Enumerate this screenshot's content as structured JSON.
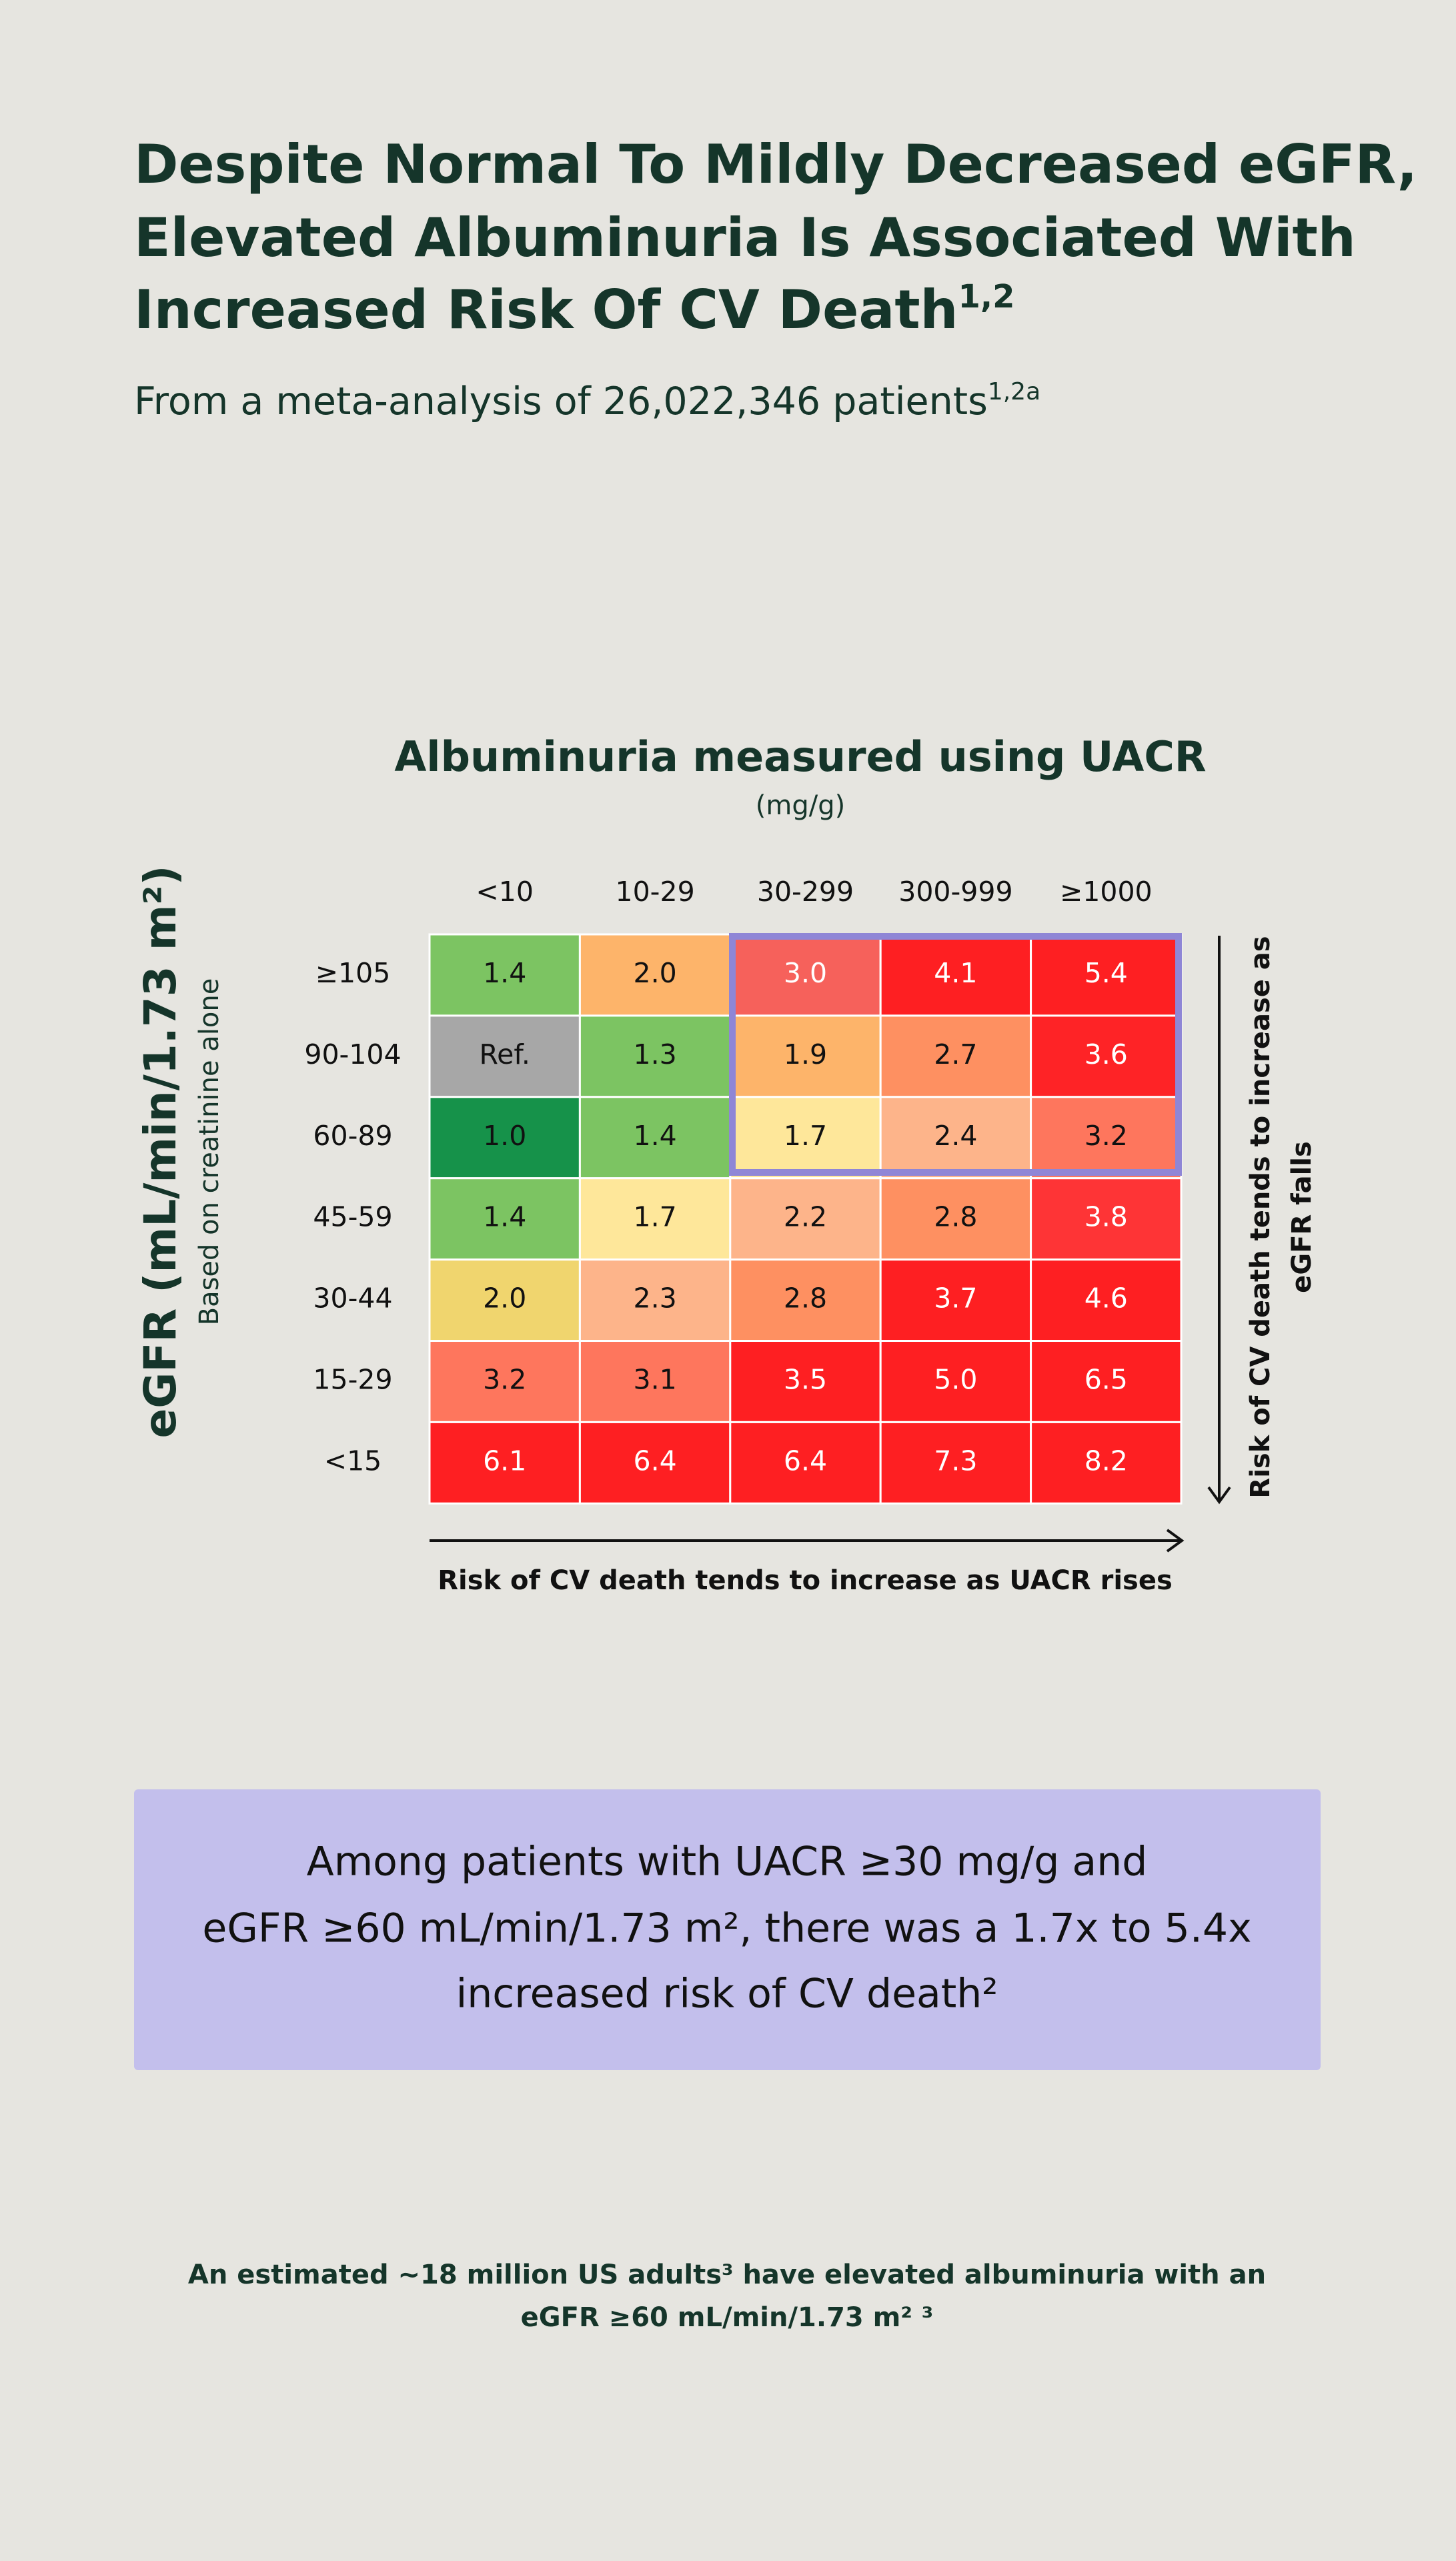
{
  "header": {
    "title_lines": [
      "Despite Normal To Mildly Decreased eGFR,",
      "Elevated Albuminuria Is Associated With",
      "Increased Risk Of CV Death"
    ],
    "title_sup": "1,2",
    "subtitle": "From a meta-analysis of 26,022,346 patients",
    "subtitle_sup": "1,2a"
  },
  "table": {
    "title": "Albuminuria measured using UACR",
    "unit": "(mg/g)",
    "columns": [
      "<10",
      "10-29",
      "30-299",
      "300-999",
      "≥1000"
    ],
    "row_axis_title": "eGFR (mL/min/1.73 m²)",
    "row_axis_subtitle": "Based on creatinine alone",
    "rows": [
      {
        "label": "≥105",
        "cells": [
          {
            "text": "1.4",
            "color": "#7cc462",
            "text_color": "#111111"
          },
          {
            "text": "2.0",
            "color": "#fdb46a",
            "text_color": "#111111"
          },
          {
            "text": "3.0",
            "color": "#f6615b",
            "text_color": "#ffffff"
          },
          {
            "text": "4.1",
            "color": "#fe1f22",
            "text_color": "#ffffff"
          },
          {
            "text": "5.4",
            "color": "#fe1f22",
            "text_color": "#ffffff"
          }
        ]
      },
      {
        "label": "90-104",
        "cells": [
          {
            "text": "Ref.",
            "color": "#a7a7a7",
            "text_color": "#111111"
          },
          {
            "text": "1.3",
            "color": "#7cc462",
            "text_color": "#111111"
          },
          {
            "text": "1.9",
            "color": "#fdb46a",
            "text_color": "#111111"
          },
          {
            "text": "2.7",
            "color": "#fe9061",
            "text_color": "#111111"
          },
          {
            "text": "3.6",
            "color": "#fe2326",
            "text_color": "#ffffff"
          }
        ]
      },
      {
        "label": "60-89",
        "cells": [
          {
            "text": "1.0",
            "color": "#16924a",
            "text_color": "#111111"
          },
          {
            "text": "1.4",
            "color": "#7cc462",
            "text_color": "#111111"
          },
          {
            "text": "1.7",
            "color": "#fee79a",
            "text_color": "#111111"
          },
          {
            "text": "2.4",
            "color": "#fdb48a",
            "text_color": "#111111"
          },
          {
            "text": "3.2",
            "color": "#fe765d",
            "text_color": "#111111"
          }
        ]
      },
      {
        "label": "45-59",
        "cells": [
          {
            "text": "1.4",
            "color": "#7cc462",
            "text_color": "#111111"
          },
          {
            "text": "1.7",
            "color": "#fee79a",
            "text_color": "#111111"
          },
          {
            "text": "2.2",
            "color": "#fdb48a",
            "text_color": "#111111"
          },
          {
            "text": "2.8",
            "color": "#fe9061",
            "text_color": "#111111"
          },
          {
            "text": "3.8",
            "color": "#fe3436",
            "text_color": "#ffffff"
          }
        ]
      },
      {
        "label": "30-44",
        "cells": [
          {
            "text": "2.0",
            "color": "#f0d56e",
            "text_color": "#111111"
          },
          {
            "text": "2.3",
            "color": "#fdb48a",
            "text_color": "#111111"
          },
          {
            "text": "2.8",
            "color": "#fe9061",
            "text_color": "#111111"
          },
          {
            "text": "3.7",
            "color": "#fe1f22",
            "text_color": "#ffffff"
          },
          {
            "text": "4.6",
            "color": "#fe1f22",
            "text_color": "#ffffff"
          }
        ]
      },
      {
        "label": "15-29",
        "cells": [
          {
            "text": "3.2",
            "color": "#fe765d",
            "text_color": "#111111"
          },
          {
            "text": "3.1",
            "color": "#fe765d",
            "text_color": "#111111"
          },
          {
            "text": "3.5",
            "color": "#fe1f22",
            "text_color": "#ffffff"
          },
          {
            "text": "5.0",
            "color": "#fe1f22",
            "text_color": "#ffffff"
          },
          {
            "text": "6.5",
            "color": "#fe1f22",
            "text_color": "#ffffff"
          }
        ]
      },
      {
        "label": "<15",
        "cells": [
          {
            "text": "6.1",
            "color": "#fe1f22",
            "text_color": "#ffffff"
          },
          {
            "text": "6.4",
            "color": "#fe1f22",
            "text_color": "#ffffff"
          },
          {
            "text": "6.4",
            "color": "#fe1f22",
            "text_color": "#ffffff"
          },
          {
            "text": "7.3",
            "color": "#fe1f22",
            "text_color": "#ffffff"
          },
          {
            "text": "8.2",
            "color": "#fe1f22",
            "text_color": "#ffffff"
          }
        ]
      }
    ],
    "right_note": [
      "Risk of CV death tends to increase as",
      "eGFR falls"
    ],
    "bottom_note": "Risk of CV death tends to increase as UACR rises"
  },
  "callout": {
    "lines": [
      "Among patients with UACR ≥30 mg/g and",
      "eGFR ≥60 mL/min/1.73 m², there was a 1.7x to 5.4x",
      "increased risk of CV death²"
    ]
  },
  "footer": {
    "lines": [
      "An estimated ~18 million US adults³ have elevated albuminuria with an",
      "eGFR ≥60 mL/min/1.73 m² ³"
    ]
  }
}
